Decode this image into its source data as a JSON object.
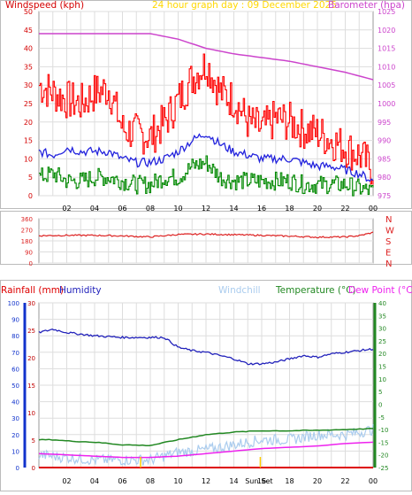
{
  "title": "24 hour graph day : 09 December 2025",
  "colors": {
    "wind_axis": "#d40000",
    "pressure_axis": "#cc44cc",
    "gust": "#ff0000",
    "average": "#2222dd",
    "lull": "#008800",
    "direction": "#dd2222",
    "humidity": "#2222bb",
    "windchill": "#aaccee",
    "temperature": "#228822",
    "dewpoint": "#ee22ee",
    "rain": "#dd0000",
    "grid": "#dddddd",
    "title": "#ffd700",
    "sunrise": "#ffcc00",
    "rain_axis": "#1133cc",
    "temp_axis": "#228822"
  },
  "chart_data": [
    {
      "type": "line",
      "title": "24 hour graph day : 09 December 2025",
      "ylabel": "Windspeed (kph)",
      "y2label": "Barometer (hpa)",
      "x_ticks": [
        "02",
        "04",
        "06",
        "08",
        "10",
        "12",
        "14",
        "16",
        "18",
        "20",
        "22",
        "00"
      ],
      "x_range": [
        0,
        24
      ],
      "ylim": [
        0,
        50
      ],
      "y_ticks": [
        0,
        5,
        10,
        15,
        20,
        25,
        30,
        35,
        40,
        45,
        50
      ],
      "y2lim": [
        975,
        1025
      ],
      "y2_ticks": [
        975,
        980,
        985,
        990,
        995,
        1000,
        1005,
        1010,
        1015,
        1020,
        1025
      ],
      "grid": true,
      "series": [
        {
          "name": "Gust",
          "axis": "left",
          "x": [
            0,
            1,
            2,
            3,
            4,
            5,
            6,
            7,
            8,
            9,
            10,
            11,
            12,
            13,
            14,
            15,
            16,
            17,
            18,
            19,
            20,
            21,
            22,
            23,
            24
          ],
          "values": [
            30,
            28,
            26,
            25,
            28,
            29,
            18,
            17,
            16,
            20,
            26,
            32,
            36,
            28,
            26,
            20,
            18,
            21,
            20,
            18,
            17,
            15,
            13,
            11,
            7
          ]
        },
        {
          "name": "Average",
          "axis": "left",
          "x": [
            0,
            1,
            2,
            3,
            4,
            5,
            6,
            7,
            8,
            9,
            10,
            11,
            12,
            13,
            14,
            15,
            16,
            17,
            18,
            19,
            20,
            21,
            22,
            23,
            24
          ],
          "values": [
            12,
            11,
            13,
            12,
            12,
            12,
            10,
            9,
            9,
            10,
            12,
            15,
            17,
            14,
            12,
            11,
            10,
            10,
            10,
            9,
            8,
            8,
            7,
            6,
            4
          ]
        },
        {
          "name": "Lull",
          "axis": "left",
          "x": [
            0,
            1,
            2,
            3,
            4,
            5,
            6,
            7,
            8,
            9,
            10,
            11,
            12,
            13,
            14,
            15,
            16,
            17,
            18,
            19,
            20,
            21,
            22,
            23,
            24
          ],
          "values": [
            5,
            6,
            4,
            4,
            5,
            5,
            4,
            3,
            3,
            5,
            5,
            8,
            9,
            5,
            4,
            4,
            4,
            4,
            4,
            3,
            3,
            3,
            3,
            2,
            1
          ]
        },
        {
          "name": "Barometer",
          "axis": "right",
          "x": [
            0,
            2,
            4,
            6,
            8,
            10,
            12,
            14,
            16,
            18,
            20,
            22,
            24
          ],
          "values": [
            1019,
            1019,
            1019,
            1019,
            1019,
            1017.5,
            1015,
            1013.5,
            1012.5,
            1011.5,
            1010,
            1008.5,
            1006.5
          ]
        }
      ]
    },
    {
      "type": "line",
      "title": "Wind direction",
      "y_ticks": [
        0,
        90,
        180,
        270,
        360
      ],
      "ylim": [
        0,
        360
      ],
      "compass_labels": [
        "N",
        "W",
        "S",
        "E",
        "N"
      ],
      "series": [
        {
          "name": "Direction",
          "x": [
            0,
            2,
            4,
            6,
            8,
            10,
            12,
            14,
            16,
            18,
            20,
            22,
            23,
            24
          ],
          "values": [
            222,
            225,
            225,
            220,
            212,
            232,
            235,
            230,
            225,
            218,
            210,
            212,
            222,
            248
          ]
        }
      ]
    },
    {
      "type": "line",
      "legend_labels": [
        "Rainfall (mm)",
        "Humidity",
        "Windchill",
        "Temperature (°C)",
        "Dew Point (°C)"
      ],
      "rain_ylim": [
        0,
        30
      ],
      "rain_ticks": [
        0,
        5,
        10,
        15,
        20,
        25,
        30
      ],
      "humidity_ylim": [
        0,
        100
      ],
      "humidity_ticks": [
        0,
        10,
        20,
        30,
        40,
        50,
        60,
        70,
        80,
        90,
        100
      ],
      "temp_ylim": [
        -25,
        40
      ],
      "temp_ticks": [
        40,
        35,
        30,
        25,
        20,
        15,
        10,
        5,
        0,
        -5,
        -10,
        -15,
        -20,
        -25
      ],
      "x_ticks": [
        "02",
        "04",
        "06",
        "08",
        "10",
        "12",
        "14",
        "16",
        "18",
        "20",
        "22",
        "00"
      ],
      "x_range": [
        0,
        24
      ],
      "markers": {
        "sunrise": 7.3,
        "sunset": 15.9,
        "sunrise_label": "Sun",
        "sunset_label": "Set"
      },
      "series": [
        {
          "name": "Humidity",
          "axis": "humidity",
          "x": [
            0,
            1,
            2,
            4,
            6,
            8,
            9,
            10,
            11,
            12,
            13,
            14,
            15,
            16,
            17,
            18,
            19,
            20,
            21,
            22,
            23,
            24
          ],
          "values": [
            82,
            84,
            82,
            80,
            79,
            79,
            79,
            73,
            71,
            70,
            68,
            66,
            63,
            63,
            64,
            66,
            68,
            67,
            69,
            70,
            71,
            72
          ]
        },
        {
          "name": "Windchill",
          "axis": "temp",
          "x": [
            0,
            2,
            4,
            6,
            8,
            10,
            12,
            14,
            16,
            18,
            20,
            22,
            24
          ],
          "values": [
            -20,
            -21,
            -22,
            -22,
            -22,
            -19,
            -18,
            -16,
            -14,
            -14,
            -12,
            -12,
            -10
          ]
        },
        {
          "name": "Temperature",
          "axis": "temp",
          "x": [
            0,
            1,
            2,
            4,
            6,
            8,
            10,
            12,
            14,
            16,
            18,
            20,
            22,
            24
          ],
          "values": [
            -14,
            -14,
            -14.5,
            -15,
            -16,
            -16.3,
            -14,
            -12,
            -11,
            -10.5,
            -10.5,
            -10.3,
            -10,
            -9.6
          ]
        },
        {
          "name": "Dew Point",
          "axis": "temp",
          "x": [
            0,
            2,
            4,
            6,
            8,
            10,
            12,
            14,
            16,
            18,
            20,
            22,
            24
          ],
          "values": [
            -19.5,
            -20,
            -20.5,
            -21,
            -21,
            -20.5,
            -19.5,
            -18.5,
            -17.5,
            -17.0,
            -16.5,
            -15.5,
            -15
          ]
        },
        {
          "name": "Rainfall",
          "axis": "rain",
          "x": [
            0,
            24
          ],
          "values": [
            0,
            0
          ]
        }
      ]
    }
  ]
}
